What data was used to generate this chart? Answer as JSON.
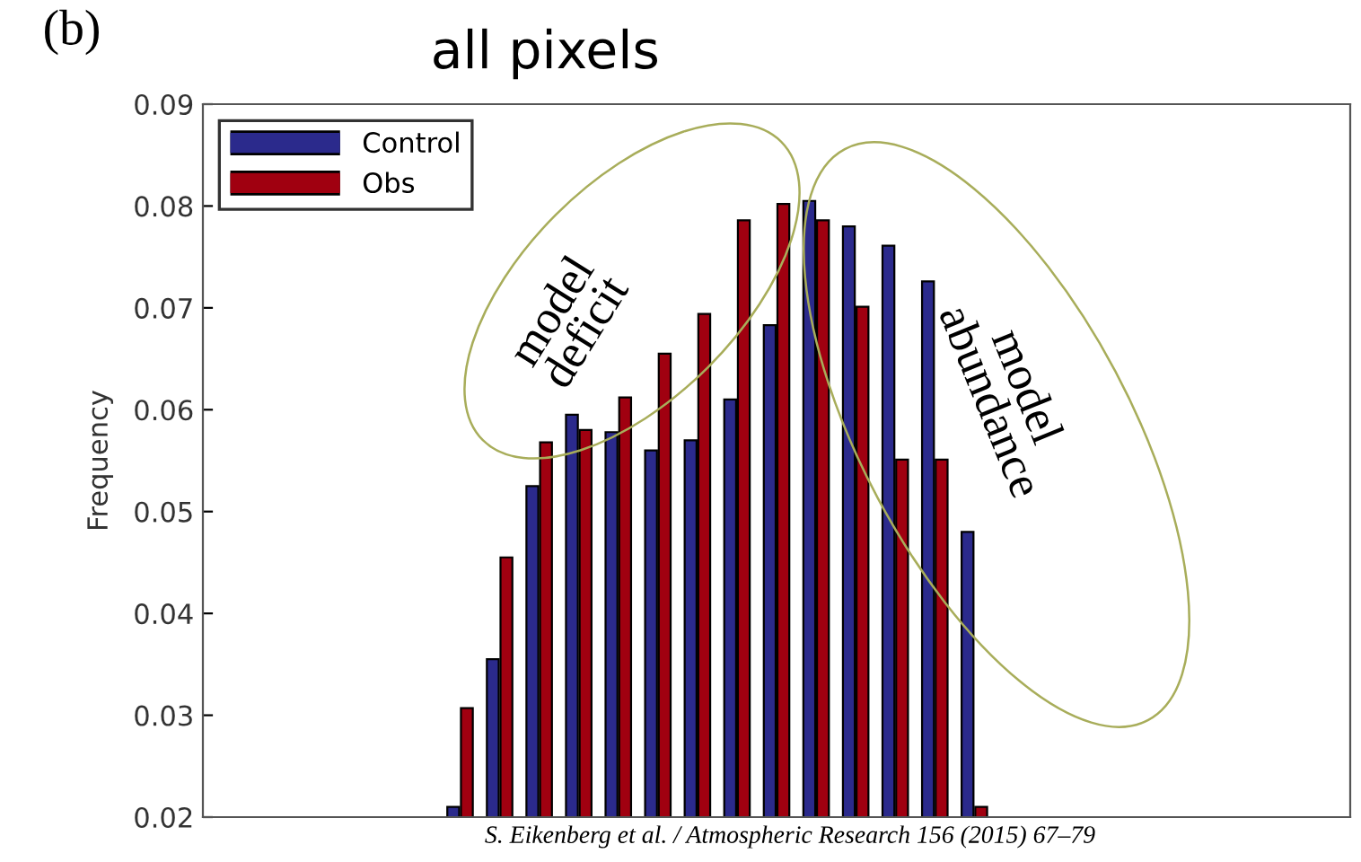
{
  "chart_data": {
    "type": "bar",
    "title": "all pixels",
    "ylabel": "Frequency",
    "categories": [
      null,
      null,
      null,
      null,
      null,
      null,
      null,
      null,
      null,
      null,
      null,
      null,
      null,
      null,
      null,
      null,
      null,
      null,
      null,
      null,
      null,
      null,
      null,
      null,
      null,
      null,
      null,
      null,
      null
    ],
    "series": [
      {
        "name": "Control",
        "color": "#2b2a8c",
        "values": [
          null,
          null,
          null,
          null,
          null,
          null,
          0.021,
          0.0355,
          0.0525,
          0.0595,
          0.0578,
          0.056,
          0.057,
          0.061,
          0.0683,
          0.0805,
          0.078,
          0.0761,
          0.0726,
          0.048,
          null,
          null,
          null,
          null,
          null,
          null,
          null,
          null,
          null
        ]
      },
      {
        "name": "Obs",
        "color": "#a00010",
        "values": [
          null,
          null,
          null,
          null,
          null,
          null,
          0.0307,
          0.0455,
          0.0568,
          0.058,
          0.0612,
          0.0655,
          0.0694,
          0.0786,
          0.0802,
          0.0786,
          0.0701,
          0.0551,
          0.0551,
          0.021,
          null,
          null,
          null,
          null,
          null,
          null,
          null,
          null,
          null
        ]
      }
    ],
    "ylim": [
      0.02,
      0.09
    ],
    "yticks": [
      {
        "value": 0.02,
        "label": "0.02"
      },
      {
        "value": 0.03,
        "label": "0.03"
      },
      {
        "value": 0.04,
        "label": "0.04"
      },
      {
        "value": 0.05,
        "label": "0.05"
      },
      {
        "value": 0.06,
        "label": "0.06"
      },
      {
        "value": 0.07,
        "label": "0.07"
      },
      {
        "value": 0.08,
        "label": "0.08"
      },
      {
        "value": 0.09,
        "label": "0.09"
      }
    ],
    "legend": "top left",
    "grid": false,
    "annotations": [
      "(b)",
      "model\ndeficit",
      "model\nabundance",
      "S. Eikenberg et al. / Atmospheric Research 156 (2015) 67–79"
    ]
  }
}
